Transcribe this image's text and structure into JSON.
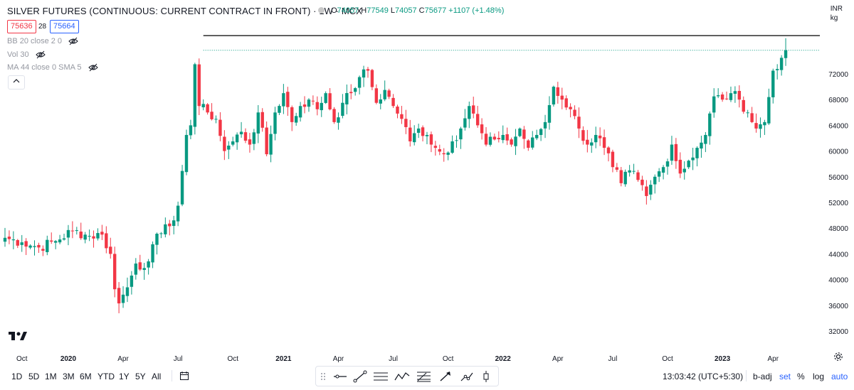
{
  "header": {
    "title": "SILVER FUTURES (CONTINUOUS: CURRENT CONTRACT IN FRONT) · 1W · MCX",
    "ohlc": [
      {
        "key": "O",
        "value": "74057"
      },
      {
        "key": "H",
        "value": "77549"
      },
      {
        "key": "L",
        "value": "74057"
      },
      {
        "key": "C",
        "value": "75677"
      },
      {
        "key": "",
        "value": "+1107 (+1.48%)"
      }
    ],
    "bid": "75636",
    "spread": "28",
    "ask": "75664",
    "currency": "INR",
    "unit": "kg"
  },
  "indicators": [
    {
      "label": "BB 20 close 2 0"
    },
    {
      "label": "Vol 30"
    },
    {
      "label": "MA 44 close 0 SMA 5"
    }
  ],
  "bottom_bar": {
    "ranges": [
      "1D",
      "5D",
      "1M",
      "3M",
      "6M",
      "YTD",
      "1Y",
      "5Y",
      "All"
    ],
    "time": "13:03:42 (UTC+5:30)",
    "options": [
      "b-adj",
      "set",
      "%",
      "log",
      "auto"
    ]
  },
  "toolbar_icons": [
    "drag-handle-icon",
    "horizontal-line-icon",
    "trend-line-icon",
    "parallel-channel-icon",
    "zigzag-icon",
    "fib-retracement-icon",
    "arrow-marker-icon",
    "price-range-icon",
    "long-position-icon"
  ],
  "colors": {
    "up": "#089981",
    "down": "#f23645",
    "accent": "#2962ff",
    "price_line": "#089981",
    "high_line": "#000000"
  },
  "chart_data": {
    "type": "candlestick",
    "title": "SILVER FUTURES (CONTINUOUS: CURRENT CONTRACT IN FRONT) · 1W · MCX",
    "ylim": [
      30000,
      81500
    ],
    "y_ticks": [
      32000,
      36000,
      40000,
      44000,
      48000,
      52000,
      56000,
      60000,
      64000,
      68000,
      72000
    ],
    "x_ticks": [
      {
        "label": "Oct",
        "week": 4
      },
      {
        "label": "2020",
        "week": 15
      },
      {
        "label": "Apr",
        "week": 28
      },
      {
        "label": "Jul",
        "week": 41
      },
      {
        "label": "Oct",
        "week": 54
      },
      {
        "label": "2021",
        "week": 66
      },
      {
        "label": "Apr",
        "week": 79
      },
      {
        "label": "Jul",
        "week": 92
      },
      {
        "label": "Oct",
        "week": 105
      },
      {
        "label": "2022",
        "week": 118
      },
      {
        "label": "Apr",
        "week": 131
      },
      {
        "label": "Jul",
        "week": 144
      },
      {
        "label": "Oct",
        "week": 157
      },
      {
        "label": "2023",
        "week": 170
      },
      {
        "label": "Apr",
        "week": 182
      }
    ],
    "last_price": 75677,
    "high_level": 77949,
    "high_level_label": "77949",
    "last_price_label": "75677",
    "anchors_close": [
      [
        0,
        46500
      ],
      [
        4,
        45800
      ],
      [
        8,
        45000
      ],
      [
        12,
        46000
      ],
      [
        16,
        47600
      ],
      [
        20,
        46800
      ],
      [
        23,
        47000
      ],
      [
        25,
        44000
      ],
      [
        26,
        38500
      ],
      [
        27,
        36300
      ],
      [
        29,
        38800
      ],
      [
        31,
        42500
      ],
      [
        33,
        41800
      ],
      [
        35,
        45500
      ],
      [
        37,
        47200
      ],
      [
        39,
        48300
      ],
      [
        41,
        51500
      ],
      [
        43,
        62500
      ],
      [
        44,
        64000
      ],
      [
        45,
        73500
      ],
      [
        46,
        67000
      ],
      [
        48,
        66000
      ],
      [
        50,
        65000
      ],
      [
        52,
        60000
      ],
      [
        54,
        61500
      ],
      [
        56,
        63000
      ],
      [
        58,
        61000
      ],
      [
        60,
        66000
      ],
      [
        62,
        59500
      ],
      [
        64,
        66000
      ],
      [
        66,
        69000
      ],
      [
        68,
        64500
      ],
      [
        70,
        67000
      ],
      [
        72,
        68000
      ],
      [
        74,
        66500
      ],
      [
        76,
        69000
      ],
      [
        78,
        64500
      ],
      [
        80,
        67500
      ],
      [
        82,
        69000
      ],
      [
        84,
        71500
      ],
      [
        86,
        72500
      ],
      [
        88,
        67500
      ],
      [
        90,
        69500
      ],
      [
        92,
        67000
      ],
      [
        94,
        65000
      ],
      [
        96,
        61500
      ],
      [
        98,
        63500
      ],
      [
        100,
        62500
      ],
      [
        102,
        60500
      ],
      [
        104,
        59500
      ],
      [
        106,
        61500
      ],
      [
        108,
        63500
      ],
      [
        110,
        67000
      ],
      [
        112,
        64000
      ],
      [
        114,
        61000
      ],
      [
        116,
        61800
      ],
      [
        118,
        62500
      ],
      [
        120,
        61000
      ],
      [
        122,
        63500
      ],
      [
        124,
        60500
      ],
      [
        126,
        62500
      ],
      [
        128,
        64500
      ],
      [
        130,
        70000
      ],
      [
        132,
        68000
      ],
      [
        134,
        66500
      ],
      [
        136,
        63500
      ],
      [
        138,
        61000
      ],
      [
        140,
        62500
      ],
      [
        142,
        60500
      ],
      [
        144,
        57500
      ],
      [
        146,
        55000
      ],
      [
        148,
        57000
      ],
      [
        150,
        55500
      ],
      [
        152,
        53000
      ],
      [
        154,
        56000
      ],
      [
        156,
        57500
      ],
      [
        158,
        61000
      ],
      [
        160,
        56500
      ],
      [
        162,
        58500
      ],
      [
        164,
        60500
      ],
      [
        166,
        62500
      ],
      [
        168,
        68500
      ],
      [
        170,
        68000
      ],
      [
        172,
        69000
      ],
      [
        174,
        68000
      ],
      [
        176,
        66000
      ],
      [
        178,
        63500
      ],
      [
        180,
        64500
      ],
      [
        182,
        72500
      ],
      [
        184,
        74500
      ],
      [
        185,
        75677
      ]
    ]
  }
}
